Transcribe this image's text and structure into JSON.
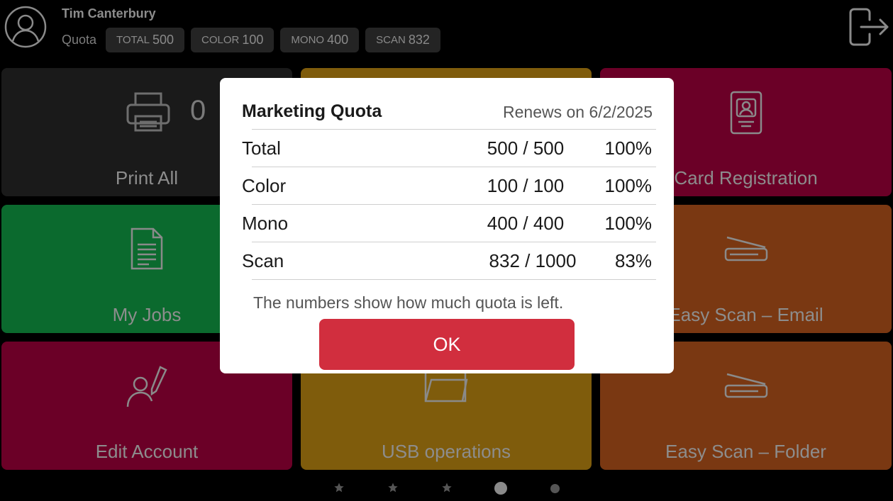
{
  "header": {
    "user_name": "Tim Canterbury",
    "quota_label": "Quota",
    "chips": [
      {
        "key": "TOTAL",
        "value": "500"
      },
      {
        "key": "COLOR",
        "value": "100"
      },
      {
        "key": "MONO",
        "value": "400"
      },
      {
        "key": "SCAN",
        "value": "832"
      }
    ]
  },
  "tiles": [
    {
      "label": "Print All",
      "count": "0",
      "color": "#1a1a1a",
      "icon": "printer-icon"
    },
    {
      "label": "",
      "color": "#7f5c0c"
    },
    {
      "label": "Card Registration",
      "color": "#6b0027",
      "icon": "id-card-icon"
    },
    {
      "label": "My Jobs",
      "color": "#0b6a2e",
      "icon": "document-icon"
    },
    {
      "label": "",
      "color": "#7a4a10"
    },
    {
      "label": "Easy Scan – Email",
      "color": "#7a3812",
      "icon": "scanner-icon"
    },
    {
      "label": "Edit Account",
      "color": "#6b0027",
      "icon": "user-edit-icon"
    },
    {
      "label": "USB operations",
      "color": "#7f5c0c",
      "icon": "folder-icon"
    },
    {
      "label": "Easy Scan – Folder",
      "color": "#7a3812",
      "icon": "scanner-icon"
    }
  ],
  "pagination": {
    "pages": 5,
    "current": 4
  },
  "modal": {
    "title": "Marketing Quota",
    "renews": "Renews on 6/2/2025",
    "rows": [
      {
        "name": "Total",
        "value": "500 / 500",
        "percent": "100%"
      },
      {
        "name": "Color",
        "value": "100 / 100",
        "percent": "100%"
      },
      {
        "name": "Mono",
        "value": "400 / 400",
        "percent": "100%"
      },
      {
        "name": "Scan",
        "value": "832 / 1000",
        "percent": "83%"
      }
    ],
    "note": "The numbers show how much quota is left.",
    "ok": "OK",
    "ok_color": "#d12e3e"
  }
}
